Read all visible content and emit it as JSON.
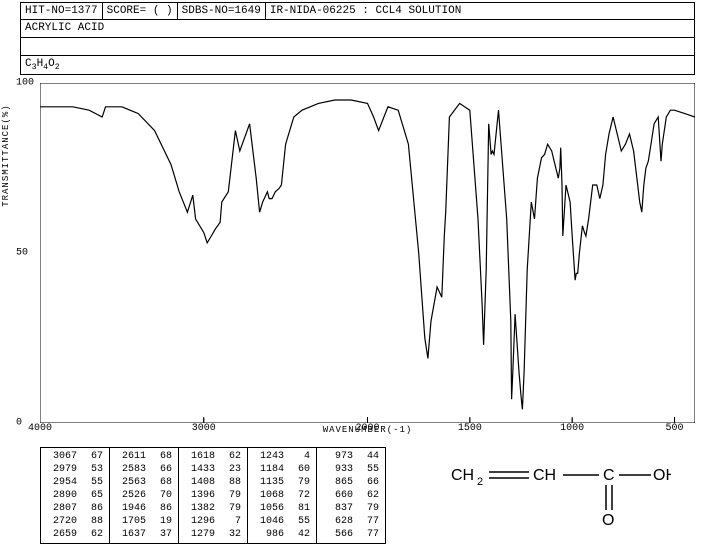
{
  "header": {
    "hit_no": "HIT-NO=1377",
    "score": "SCORE=   (   )",
    "sdbs_no": "SDBS-NO=1649",
    "spectrum_id": "IR-NIDA-06225 : CCL4 SOLUTION"
  },
  "compound_name": "ACRYLIC ACID",
  "formula_html": "C<sub>3</sub>H<sub>4</sub>O<sub>2</sub>",
  "chart": {
    "type": "line",
    "xlabel": "WAVENUMBER(-1)",
    "ylabel": "TRANSMITTANCE(%)",
    "xlim": [
      4000,
      400
    ],
    "ylim": [
      0,
      100
    ],
    "xticks": [
      4000,
      3000,
      2000,
      1500,
      1000,
      500
    ],
    "yticks": [
      0,
      50,
      100
    ],
    "line_color": "#000000",
    "background_color": "#ffffff",
    "border_color": "#000000",
    "spectrum": [
      [
        4000,
        93
      ],
      [
        3900,
        93
      ],
      [
        3800,
        93
      ],
      [
        3700,
        92
      ],
      [
        3620,
        90
      ],
      [
        3600,
        93
      ],
      [
        3500,
        93
      ],
      [
        3400,
        91
      ],
      [
        3300,
        86
      ],
      [
        3200,
        76
      ],
      [
        3150,
        68
      ],
      [
        3100,
        62
      ],
      [
        3067,
        67
      ],
      [
        3050,
        60
      ],
      [
        3000,
        56
      ],
      [
        2979,
        53
      ],
      [
        2954,
        55
      ],
      [
        2930,
        57
      ],
      [
        2900,
        59
      ],
      [
        2890,
        65
      ],
      [
        2850,
        68
      ],
      [
        2807,
        86
      ],
      [
        2780,
        80
      ],
      [
        2750,
        84
      ],
      [
        2720,
        88
      ],
      [
        2700,
        80
      ],
      [
        2680,
        72
      ],
      [
        2659,
        62
      ],
      [
        2640,
        65
      ],
      [
        2611,
        68
      ],
      [
        2600,
        66
      ],
      [
        2583,
        66
      ],
      [
        2563,
        68
      ],
      [
        2540,
        69
      ],
      [
        2526,
        70
      ],
      [
        2500,
        82
      ],
      [
        2450,
        90
      ],
      [
        2400,
        92
      ],
      [
        2300,
        94
      ],
      [
        2200,
        95
      ],
      [
        2100,
        95
      ],
      [
        2000,
        94
      ],
      [
        1970,
        90
      ],
      [
        1946,
        86
      ],
      [
        1920,
        90
      ],
      [
        1900,
        93
      ],
      [
        1850,
        92
      ],
      [
        1800,
        82
      ],
      [
        1750,
        50
      ],
      [
        1720,
        25
      ],
      [
        1705,
        19
      ],
      [
        1690,
        30
      ],
      [
        1660,
        40
      ],
      [
        1637,
        37
      ],
      [
        1625,
        55
      ],
      [
        1618,
        62
      ],
      [
        1600,
        90
      ],
      [
        1550,
        94
      ],
      [
        1500,
        92
      ],
      [
        1460,
        60
      ],
      [
        1440,
        35
      ],
      [
        1433,
        23
      ],
      [
        1420,
        45
      ],
      [
        1408,
        88
      ],
      [
        1400,
        82
      ],
      [
        1396,
        79
      ],
      [
        1390,
        80
      ],
      [
        1382,
        79
      ],
      [
        1360,
        92
      ],
      [
        1320,
        60
      ],
      [
        1300,
        30
      ],
      [
        1296,
        7
      ],
      [
        1290,
        15
      ],
      [
        1279,
        32
      ],
      [
        1260,
        15
      ],
      [
        1250,
        8
      ],
      [
        1243,
        4
      ],
      [
        1235,
        15
      ],
      [
        1220,
        45
      ],
      [
        1200,
        65
      ],
      [
        1184,
        60
      ],
      [
        1170,
        72
      ],
      [
        1150,
        78
      ],
      [
        1135,
        79
      ],
      [
        1120,
        82
      ],
      [
        1100,
        80
      ],
      [
        1080,
        75
      ],
      [
        1068,
        72
      ],
      [
        1060,
        75
      ],
      [
        1056,
        81
      ],
      [
        1050,
        70
      ],
      [
        1046,
        55
      ],
      [
        1030,
        70
      ],
      [
        1010,
        65
      ],
      [
        1000,
        55
      ],
      [
        986,
        42
      ],
      [
        980,
        44
      ],
      [
        973,
        44
      ],
      [
        965,
        50
      ],
      [
        950,
        58
      ],
      [
        940,
        56
      ],
      [
        933,
        55
      ],
      [
        920,
        60
      ],
      [
        900,
        70
      ],
      [
        880,
        70
      ],
      [
        865,
        66
      ],
      [
        850,
        70
      ],
      [
        837,
        79
      ],
      [
        820,
        85
      ],
      [
        800,
        90
      ],
      [
        780,
        85
      ],
      [
        760,
        80
      ],
      [
        740,
        82
      ],
      [
        720,
        85
      ],
      [
        700,
        80
      ],
      [
        680,
        70
      ],
      [
        670,
        65
      ],
      [
        660,
        62
      ],
      [
        650,
        70
      ],
      [
        640,
        75
      ],
      [
        628,
        77
      ],
      [
        615,
        82
      ],
      [
        600,
        88
      ],
      [
        580,
        90
      ],
      [
        566,
        77
      ],
      [
        560,
        82
      ],
      [
        540,
        90
      ],
      [
        520,
        92
      ],
      [
        500,
        92
      ],
      [
        450,
        91
      ],
      [
        400,
        90
      ]
    ]
  },
  "peaks": [
    [
      [
        3067,
        67
      ],
      [
        2979,
        53
      ],
      [
        2954,
        55
      ],
      [
        2890,
        65
      ],
      [
        2807,
        86
      ],
      [
        2720,
        88
      ],
      [
        2659,
        62
      ]
    ],
    [
      [
        2611,
        68
      ],
      [
        2583,
        66
      ],
      [
        2563,
        68
      ],
      [
        2526,
        70
      ],
      [
        1946,
        86
      ],
      [
        1705,
        19
      ],
      [
        1637,
        37
      ]
    ],
    [
      [
        1618,
        62
      ],
      [
        1433,
        23
      ],
      [
        1408,
        88
      ],
      [
        1396,
        79
      ],
      [
        1382,
        79
      ],
      [
        1296,
        7
      ],
      [
        1279,
        32
      ]
    ],
    [
      [
        1243,
        4
      ],
      [
        1184,
        60
      ],
      [
        1135,
        79
      ],
      [
        1068,
        72
      ],
      [
        1056,
        81
      ],
      [
        1046,
        55
      ],
      [
        986,
        42
      ]
    ],
    [
      [
        973,
        44
      ],
      [
        933,
        55
      ],
      [
        865,
        66
      ],
      [
        660,
        62
      ],
      [
        837,
        79
      ],
      [
        628,
        77
      ],
      [
        566,
        77
      ]
    ]
  ],
  "structure": {
    "text_parts": [
      "CH",
      "2",
      "CH",
      "C",
      "OH",
      "O"
    ],
    "bond_color": "#000000",
    "font_family": "sans-serif"
  }
}
